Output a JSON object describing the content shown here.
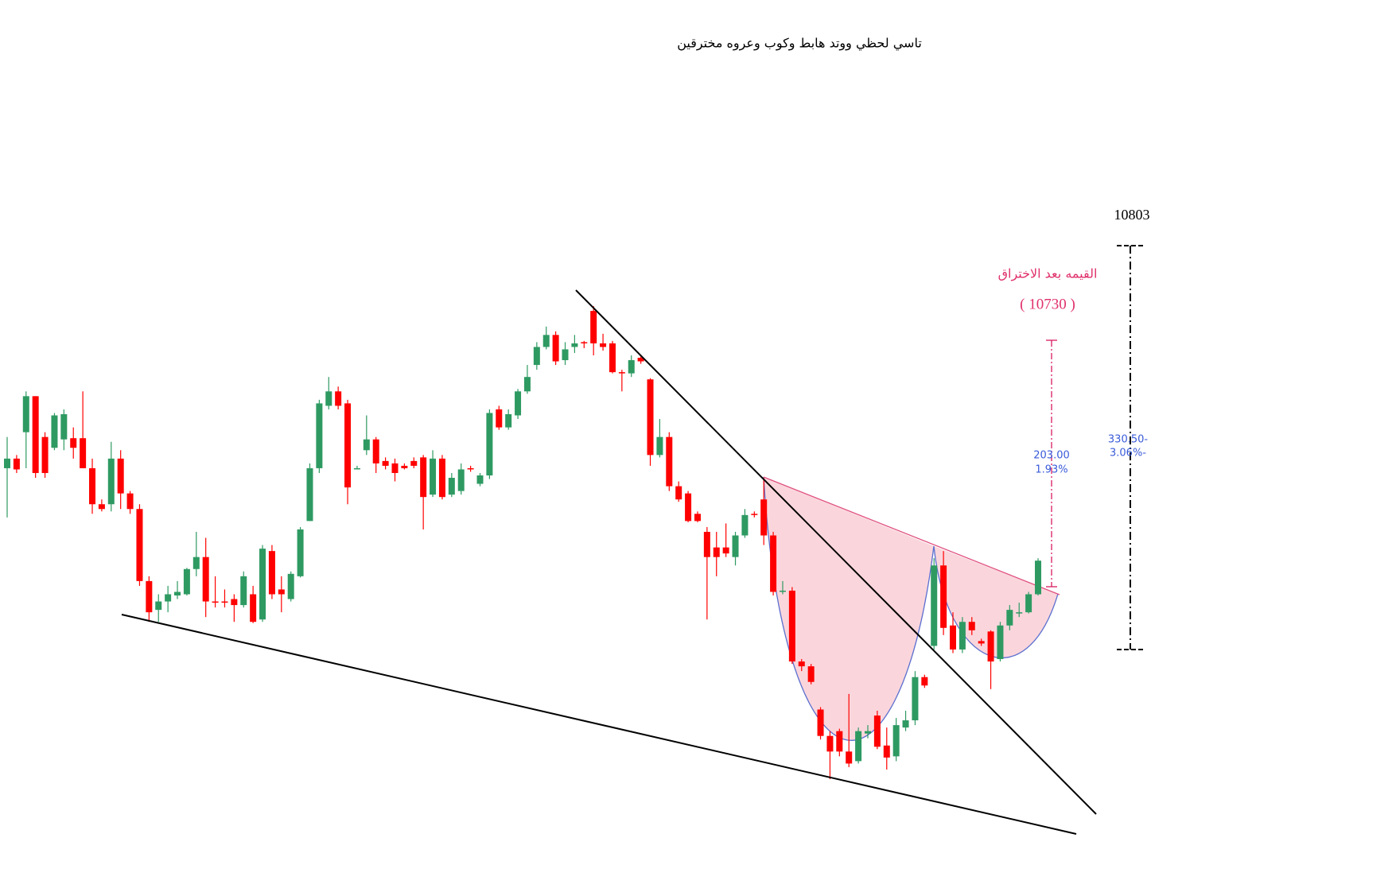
{
  "chart_data": {
    "type": "candlestick",
    "title": "تاسي لحظي ووتد هابط وكوب وعروه مخترقين",
    "annotations": [
      "10803",
      "القيمه بعد الاختراق",
      "( 10730 )",
      "203.00",
      "1.93%",
      "330.50-",
      "3.06%-"
    ],
    "up_color": "#2e9a62",
    "down_color": "#ff0000",
    "ylim": [
      10269,
      11012
    ],
    "open": [
      10622,
      10630,
      10652,
      10682,
      10648,
      10639,
      10646,
      10647,
      10647,
      10622,
      10592,
      10592,
      10630,
      10601,
      10588,
      10528,
      10504,
      10511,
      10516,
      10517,
      10538,
      10548,
      10511,
      10511,
      10513,
      10508,
      10517,
      10496,
      10553,
      10521,
      10513,
      10532,
      10578,
      10622,
      10674,
      10686,
      10676,
      10622,
      10637,
      10646,
      10628,
      10626,
      10624,
      10628,
      10631,
      10600,
      10630,
      10600,
      10603,
      10622,
      10609,
      10616,
      10671,
      10656,
      10666,
      10686,
      10708,
      10723,
      10733,
      10712,
      10723,
      10727,
      10753,
      10726,
      10726,
      10702,
      10701,
      10714,
      10696,
      10633,
      10648,
      10607,
      10601,
      10584,
      10569,
      10556,
      10556,
      10548,
      10566,
      10584,
      10596,
      10566,
      10519,
      10520,
      10461,
      10457,
      10421,
      10399,
      10403,
      10386,
      10378,
      10401,
      10416,
      10391,
      10382,
      10406,
      10412,
      10448,
      10474,
      10541,
      10491,
      10471,
      10494,
      10478,
      10486,
      10463,
      10491,
      10501,
      10502,
      10517
    ],
    "high": [
      10648,
      10633,
      10686,
      10682,
      10652,
      10668,
      10671,
      10656,
      10686,
      10630,
      10596,
      10644,
      10637,
      10603,
      10592,
      10532,
      10517,
      10524,
      10528,
      10539,
      10569,
      10564,
      10532,
      10521,
      10517,
      10536,
      10524,
      10558,
      10558,
      10532,
      10536,
      10573,
      10626,
      10679,
      10698,
      10690,
      10679,
      10624,
      10666,
      10648,
      10631,
      10630,
      10626,
      10631,
      10633,
      10637,
      10633,
      10618,
      10626,
      10624,
      10618,
      10671,
      10674,
      10671,
      10688,
      10708,
      10727,
      10740,
      10736,
      10727,
      10733,
      10728,
      10757,
      10734,
      10728,
      10704,
      10716,
      10715,
      10697,
      10663,
      10652,
      10611,
      10603,
      10586,
      10573,
      10569,
      10576,
      10569,
      10588,
      10586,
      10614,
      10569,
      10528,
      10523,
      10463,
      10459,
      10423,
      10403,
      10405,
      10434,
      10406,
      10408,
      10420,
      10406,
      10414,
      10420,
      10453,
      10450,
      10547,
      10553,
      10502,
      10498,
      10498,
      10480,
      10487,
      10494,
      10508,
      10510,
      10519,
      10547
    ],
    "low": [
      10581,
      10618,
      10622,
      10614,
      10614,
      10637,
      10637,
      10630,
      10622,
      10584,
      10586,
      10586,
      10588,
      10584,
      10524,
      10494,
      10494,
      10502,
      10513,
      10516,
      10532,
      10498,
      10506,
      10506,
      10494,
      10506,
      10493,
      10494,
      10513,
      10502,
      10511,
      10531,
      10578,
      10618,
      10671,
      10671,
      10592,
      10621,
      10633,
      10618,
      10621,
      10611,
      10621,
      10622,
      10571,
      10598,
      10596,
      10598,
      10600,
      10619,
      10607,
      10613,
      10654,
      10654,
      10663,
      10684,
      10704,
      10721,
      10708,
      10708,
      10718,
      10722,
      10716,
      10720,
      10701,
      10686,
      10698,
      10709,
      10624,
      10631,
      10603,
      10594,
      10577,
      10577,
      10496,
      10532,
      10548,
      10541,
      10564,
      10581,
      10558,
      10516,
      10517,
      10459,
      10453,
      10442,
      10396,
      10363,
      10382,
      10373,
      10376,
      10397,
      10388,
      10371,
      10378,
      10403,
      10408,
      10439,
      10471,
      10483,
      10468,
      10468,
      10483,
      10474,
      10438,
      10461,
      10487,
      10498,
      10501,
      10516
    ],
    "close": [
      10630,
      10621,
      10682,
      10618,
      10618,
      10666,
      10667,
      10639,
      10622,
      10592,
      10588,
      10630,
      10601,
      10588,
      10528,
      10502,
      10511,
      10517,
      10519,
      10538,
      10548,
      10511,
      10510,
      10510,
      10508,
      10532,
      10494,
      10555,
      10517,
      10517,
      10534,
      10571,
      10622,
      10676,
      10686,
      10674,
      10606,
      10622,
      10646,
      10626,
      10624,
      10618,
      10622,
      10624,
      10598,
      10630,
      10598,
      10614,
      10621,
      10621,
      10616,
      10668,
      10656,
      10667,
      10686,
      10698,
      10723,
      10733,
      10711,
      10721,
      10726,
      10726,
      10726,
      10723,
      10702,
      10701,
      10712,
      10711,
      10633,
      10648,
      10607,
      10596,
      10578,
      10578,
      10548,
      10548,
      10551,
      10566,
      10583,
      10583,
      10566,
      10519,
      10520,
      10461,
      10457,
      10444,
      10399,
      10386,
      10386,
      10376,
      10403,
      10403,
      10390,
      10381,
      10408,
      10412,
      10448,
      10441,
      10541,
      10489,
      10471,
      10494,
      10487,
      10476,
      10461,
      10491,
      10504,
      10502,
      10517,
      10545
    ]
  }
}
